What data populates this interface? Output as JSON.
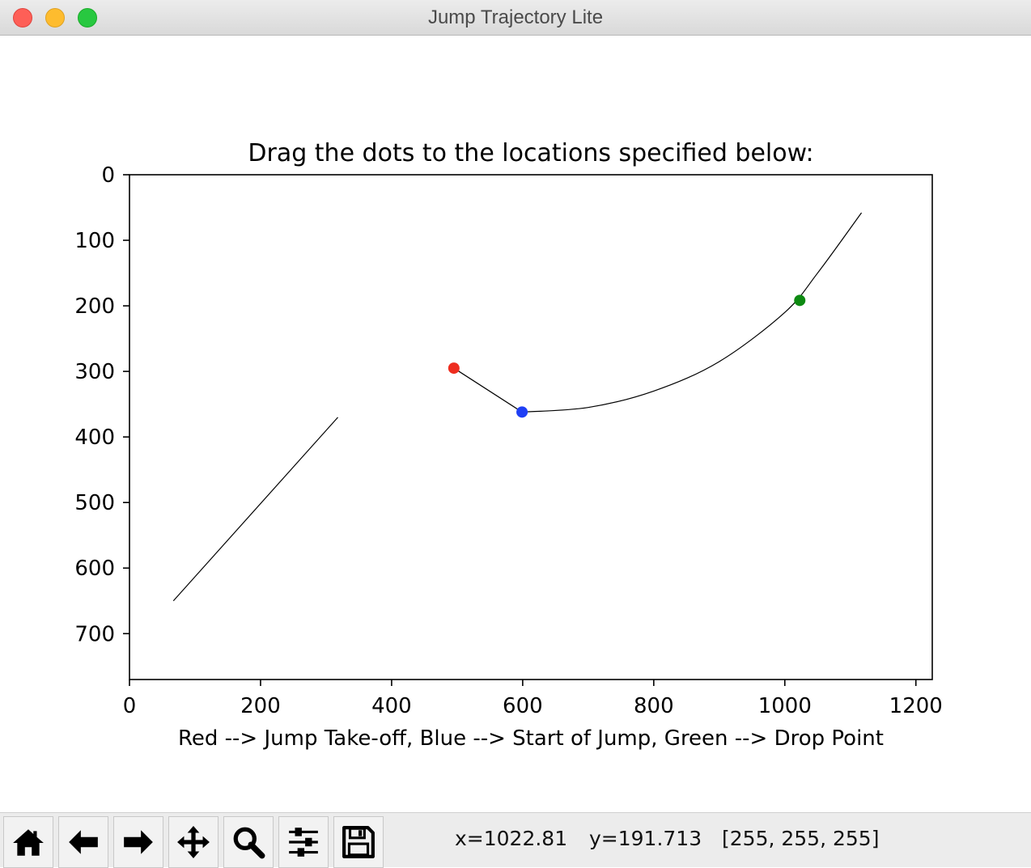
{
  "window": {
    "title": "Jump Trajectory Lite"
  },
  "chart_data": {
    "type": "line",
    "title": "Drag the dots to the locations specified below:",
    "xlabel": "Red --> Jump Take-off, Blue --> Start of Jump, Green --> Drop Point",
    "ylabel": "",
    "xlim": [
      0,
      1225
    ],
    "ylim": [
      0,
      770
    ],
    "y_inverted": true,
    "grid": false,
    "xticks": [
      0,
      200,
      400,
      600,
      800,
      1000,
      1200
    ],
    "yticks": [
      0,
      100,
      200,
      300,
      400,
      500,
      600,
      700
    ],
    "series": [
      {
        "x": [
          67,
          318
        ],
        "y": [
          650,
          370
        ]
      },
      {
        "x": [
          495,
          599
        ],
        "y": [
          295,
          362
        ]
      },
      {
        "x": [
          599,
          700,
          800,
          900,
          1000,
          1050,
          1117
        ],
        "y": [
          362,
          355,
          330,
          285,
          210,
          150,
          58
        ]
      }
    ],
    "points": [
      {
        "x": 495,
        "y": 295,
        "color": "#ee2d1f"
      },
      {
        "x": 599,
        "y": 362,
        "color": "#1f3ff5"
      },
      {
        "x": 1022.81,
        "y": 191.713,
        "color": "#0d8a12"
      }
    ]
  },
  "toolbar": {
    "buttons": [
      {
        "icon": "home-icon"
      },
      {
        "icon": "back-arrow-icon"
      },
      {
        "icon": "forward-arrow-icon"
      },
      {
        "icon": "pan-icon"
      },
      {
        "icon": "zoom-icon"
      },
      {
        "icon": "configure-subplots-icon"
      },
      {
        "icon": "save-icon"
      }
    ]
  },
  "status": {
    "x": "x=1022.81",
    "y": "y=191.713",
    "pixel": "[255, 255, 255]"
  }
}
